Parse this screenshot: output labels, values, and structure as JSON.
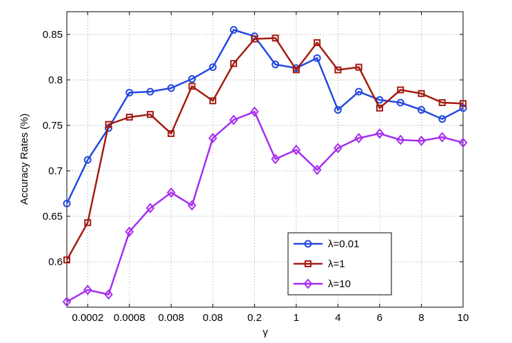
{
  "chart_data": {
    "type": "line",
    "x_label": "γ",
    "y_label": "Accuracy Rates (%)",
    "categories": [
      null,
      "0.0002",
      null,
      "0.0008",
      null,
      "0.008",
      null,
      "0.08",
      null,
      "0.2",
      null,
      "1",
      null,
      "4",
      null,
      "6",
      null,
      "8",
      null,
      "10"
    ],
    "ylim": [
      0.55,
      0.875
    ],
    "yticks": [
      0.6,
      0.65,
      0.7,
      0.75,
      0.8,
      0.85
    ],
    "grid": true,
    "legend": "lower right",
    "series": [
      {
        "name": "λ=0.01",
        "color": "#2348e0",
        "marker": "circle",
        "values": [
          0.664,
          0.712,
          0.747,
          0.786,
          0.787,
          0.791,
          0.801,
          0.814,
          0.855,
          0.848,
          0.817,
          0.813,
          0.824,
          0.767,
          0.787,
          0.778,
          0.775,
          0.767,
          0.757,
          0.769
        ]
      },
      {
        "name": "λ=1",
        "color": "#a31a10",
        "marker": "square",
        "values": [
          0.602,
          0.643,
          0.751,
          0.759,
          0.762,
          0.741,
          0.793,
          0.777,
          0.818,
          0.845,
          0.846,
          0.811,
          0.841,
          0.811,
          0.814,
          0.769,
          0.789,
          0.785,
          0.775,
          0.774
        ]
      },
      {
        "name": "λ=10",
        "color": "#a52cf0",
        "marker": "diamond",
        "values": [
          0.556,
          0.569,
          0.564,
          0.633,
          0.659,
          0.676,
          0.662,
          0.736,
          0.756,
          0.765,
          0.713,
          0.723,
          0.701,
          0.725,
          0.736,
          0.741,
          0.734,
          0.733,
          0.737,
          0.731
        ]
      }
    ]
  }
}
